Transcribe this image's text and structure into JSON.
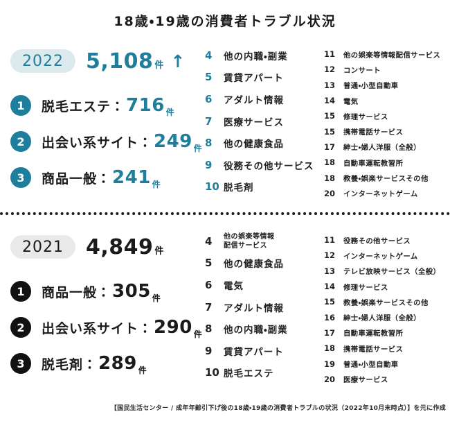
{
  "header": {
    "title": "18歳・19歳の消費者トラブル状況"
  },
  "theme": {
    "accent_teal": "#1f7e9b",
    "teal_badge_bg": "#dceaee",
    "gray_badge_bg": "#e9e9e9",
    "text_black": "#1a1a1a",
    "background": "#ffffff"
  },
  "chart_data": [
    {
      "type": "table",
      "title": "2022 18歳・19歳の消費者トラブル件数ランキング",
      "total_cases": 5108,
      "trend": "up",
      "rows": [
        {
          "rank": 1,
          "category": "脱毛エステ",
          "cases": 716
        },
        {
          "rank": 2,
          "category": "出会い系サイト",
          "cases": 249
        },
        {
          "rank": 3,
          "category": "商品一般",
          "cases": 241
        },
        {
          "rank": 4,
          "category": "他の内職・副業"
        },
        {
          "rank": 5,
          "category": "賃貸アパート"
        },
        {
          "rank": 6,
          "category": "アダルト情報"
        },
        {
          "rank": 7,
          "category": "医療サービス"
        },
        {
          "rank": 8,
          "category": "他の健康食品"
        },
        {
          "rank": 9,
          "category": "役務その他サービス"
        },
        {
          "rank": 10,
          "category": "脱毛剤"
        },
        {
          "rank": 11,
          "category": "他の娯楽等情報配信サービス"
        },
        {
          "rank": 12,
          "category": "コンサート"
        },
        {
          "rank": 13,
          "category": "普通・小型自動車"
        },
        {
          "rank": 14,
          "category": "電気"
        },
        {
          "rank": 15,
          "category": "修理サービス"
        },
        {
          "rank": 15,
          "category": "携帯電話サービス"
        },
        {
          "rank": 17,
          "category": "紳士・婦人洋服（全般）"
        },
        {
          "rank": 18,
          "category": "自動車運転教習所"
        },
        {
          "rank": 18,
          "category": "教養・娯楽サービスその他"
        },
        {
          "rank": 20,
          "category": "インターネットゲーム"
        }
      ]
    },
    {
      "type": "table",
      "title": "2021 18歳・19歳の消費者トラブル件数ランキング",
      "total_cases": 4849,
      "rows": [
        {
          "rank": 1,
          "category": "商品一般",
          "cases": 305
        },
        {
          "rank": 2,
          "category": "出会い系サイト",
          "cases": 290
        },
        {
          "rank": 3,
          "category": "脱毛剤",
          "cases": 289
        },
        {
          "rank": 4,
          "category": "他の娯楽等情報配信サービス"
        },
        {
          "rank": 5,
          "category": "他の健康食品"
        },
        {
          "rank": 6,
          "category": "電気"
        },
        {
          "rank": 7,
          "category": "アダルト情報"
        },
        {
          "rank": 8,
          "category": "他の内職・副業"
        },
        {
          "rank": 9,
          "category": "賃貸アパート"
        },
        {
          "rank": 10,
          "category": "脱毛エステ"
        },
        {
          "rank": 11,
          "category": "役務その他サービス"
        },
        {
          "rank": 12,
          "category": "インターネットゲーム"
        },
        {
          "rank": 13,
          "category": "テレビ放映サービス（全般）"
        },
        {
          "rank": 14,
          "category": "修理サービス"
        },
        {
          "rank": 15,
          "category": "教養・娯楽サービスその他"
        },
        {
          "rank": 16,
          "category": "紳士・婦人洋服（全般）"
        },
        {
          "rank": 17,
          "category": "自動車運転教習所"
        },
        {
          "rank": 18,
          "category": "携帯電話サービス"
        },
        {
          "rank": 19,
          "category": "普通・小型自動車"
        },
        {
          "rank": 20,
          "category": "医療サービス"
        }
      ]
    }
  ],
  "sections": {
    "y2022": {
      "year": "2022",
      "total": "5,108",
      "unit": "件",
      "trend_arrow": "↑",
      "top3": [
        {
          "rank": "1",
          "label": "脱毛エステ：",
          "count": "716",
          "unit": "件"
        },
        {
          "rank": "2",
          "label": "出会い系サイト：",
          "count": "249",
          "unit": "件"
        },
        {
          "rank": "3",
          "label": "商品一般：",
          "count": "241",
          "unit": "件"
        }
      ],
      "ranks_4_10": [
        {
          "num": "4",
          "label": "他の内職・副業"
        },
        {
          "num": "5",
          "label": "賃貸アパート"
        },
        {
          "num": "6",
          "label": "アダルト情報"
        },
        {
          "num": "7",
          "label": "医療サービス"
        },
        {
          "num": "8",
          "label": "他の健康食品"
        },
        {
          "num": "9",
          "label": "役務その他サービス"
        },
        {
          "num": "10",
          "label": "脱毛剤"
        }
      ],
      "ranks_11_20": [
        {
          "num": "11",
          "label": "他の娯楽等情報配信サービス"
        },
        {
          "num": "12",
          "label": "コンサート"
        },
        {
          "num": "13",
          "label": "普通・小型自動車"
        },
        {
          "num": "14",
          "label": "電気"
        },
        {
          "num": "15",
          "label": "修理サービス"
        },
        {
          "num": "15",
          "label": "携帯電話サービス"
        },
        {
          "num": "17",
          "label": "紳士・婦人洋服（全般）"
        },
        {
          "num": "18",
          "label": "自動車運転教習所"
        },
        {
          "num": "18",
          "label": "教養・娯楽サービスその他"
        },
        {
          "num": "20",
          "label": "インターネットゲーム"
        }
      ]
    },
    "y2021": {
      "year": "2021",
      "total": "4,849",
      "unit": "件",
      "trend_arrow": "",
      "top3": [
        {
          "rank": "1",
          "label": "商品一般：",
          "count": "305",
          "unit": "件"
        },
        {
          "rank": "2",
          "label": "出会い系サイト：",
          "count": "290",
          "unit": "件"
        },
        {
          "rank": "3",
          "label": "脱毛剤：",
          "count": "289",
          "unit": "件"
        }
      ],
      "ranks_4_10": [
        {
          "num": "4",
          "label": "他の娯楽等情報\n配信サービス",
          "small": true
        },
        {
          "num": "5",
          "label": "他の健康食品"
        },
        {
          "num": "6",
          "label": "電気"
        },
        {
          "num": "7",
          "label": "アダルト情報"
        },
        {
          "num": "8",
          "label": "他の内職・副業"
        },
        {
          "num": "9",
          "label": "賃貸アパート"
        },
        {
          "num": "10",
          "label": "脱毛エステ"
        }
      ],
      "ranks_11_20": [
        {
          "num": "11",
          "label": "役務その他サービス"
        },
        {
          "num": "12",
          "label": "インターネットゲーム"
        },
        {
          "num": "13",
          "label": "テレビ放映サービス（全般）"
        },
        {
          "num": "14",
          "label": "修理サービス"
        },
        {
          "num": "15",
          "label": "教養・娯楽サービスその他"
        },
        {
          "num": "16",
          "label": "紳士・婦人洋服（全般）"
        },
        {
          "num": "17",
          "label": "自動車運転教習所"
        },
        {
          "num": "18",
          "label": "携帯電話サービス"
        },
        {
          "num": "19",
          "label": "普通・小型自動車"
        },
        {
          "num": "20",
          "label": "医療サービス"
        }
      ]
    }
  },
  "footer": {
    "source": "【国民生活センター / 成年年齢引下げ後の18歳・19歳の消費者トラブルの状況（2022年10月末時点）】を元に作成"
  }
}
